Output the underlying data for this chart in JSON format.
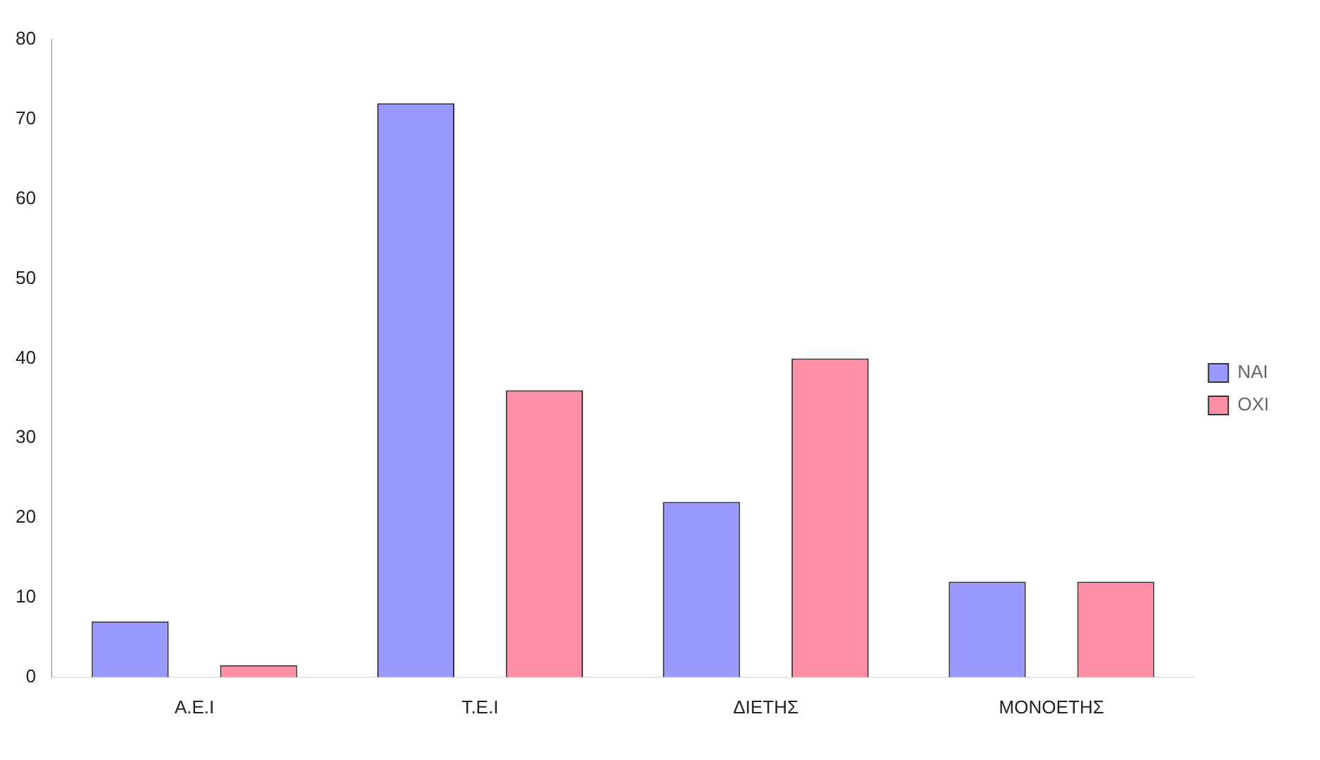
{
  "chart_data": {
    "type": "bar",
    "categories": [
      "Α.Ε.Ι",
      "Τ.Ε.Ι",
      "ΔΙΕΤΗΣ",
      "ΜΟΝΟΕΤΗΣ"
    ],
    "series": [
      {
        "name": "ΝΑΙ",
        "color": "#9999ff",
        "values": [
          7,
          72,
          22,
          12
        ]
      },
      {
        "name": "ΟΧΙ",
        "color": "#ff8fa6",
        "values": [
          1.5,
          36,
          40,
          12
        ]
      }
    ],
    "ylim": [
      0,
      80
    ],
    "yticks": [
      0,
      10,
      20,
      30,
      40,
      50,
      60,
      70,
      80
    ],
    "grid": false,
    "legend": "right"
  }
}
